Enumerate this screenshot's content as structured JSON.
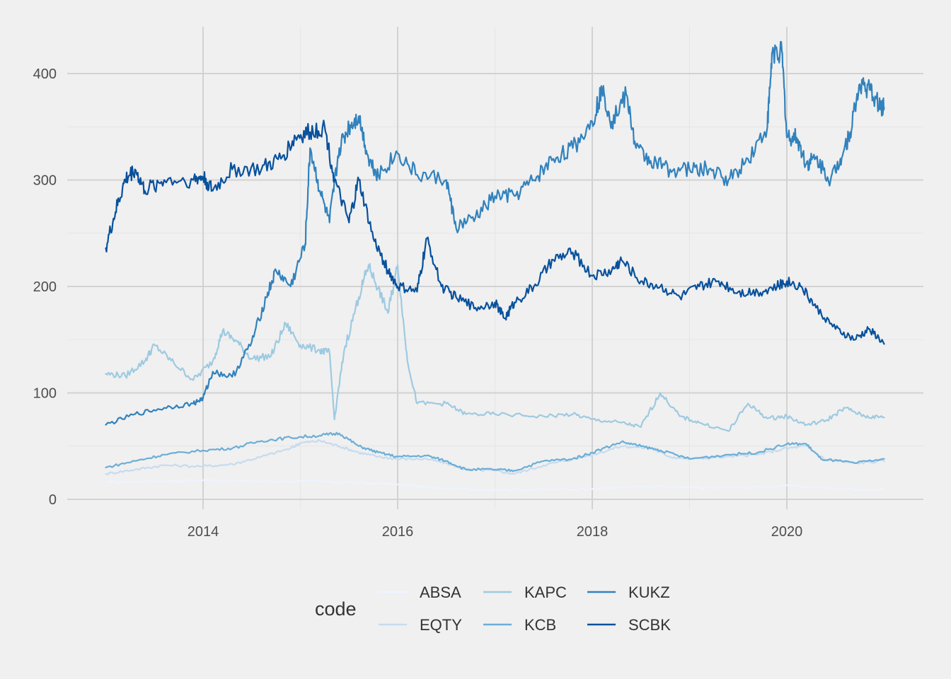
{
  "chart_data": {
    "type": "line",
    "title": "",
    "xlabel": "",
    "ylabel": "",
    "xlim": [
      2013.0,
      2021.0
    ],
    "ylim": [
      0,
      420
    ],
    "x_ticks": [
      2014,
      2016,
      2018,
      2020
    ],
    "y_ticks": [
      0,
      100,
      200,
      300,
      400
    ],
    "grid": true,
    "legend": {
      "title": "code",
      "placement": "bottom"
    },
    "series": [
      {
        "name": "ABSA",
        "color": "#eff3ff",
        "points": [
          [
            2013.0,
            16
          ],
          [
            2013.5,
            17
          ],
          [
            2014.0,
            18
          ],
          [
            2014.5,
            17
          ],
          [
            2015.0,
            17
          ],
          [
            2015.5,
            16
          ],
          [
            2016.0,
            14
          ],
          [
            2016.5,
            10
          ],
          [
            2017.0,
            9
          ],
          [
            2017.5,
            9
          ],
          [
            2018.0,
            10
          ],
          [
            2018.5,
            12
          ],
          [
            2019.0,
            11
          ],
          [
            2019.5,
            11
          ],
          [
            2020.0,
            13
          ],
          [
            2020.5,
            10
          ],
          [
            2021.0,
            9
          ]
        ]
      },
      {
        "name": "EQTY",
        "color": "#c6dbef",
        "points": [
          [
            2013.0,
            24
          ],
          [
            2013.3,
            28
          ],
          [
            2013.6,
            32
          ],
          [
            2014.0,
            31
          ],
          [
            2014.3,
            33
          ],
          [
            2014.6,
            40
          ],
          [
            2014.9,
            48
          ],
          [
            2015.0,
            53
          ],
          [
            2015.2,
            55
          ],
          [
            2015.4,
            50
          ],
          [
            2015.6,
            44
          ],
          [
            2015.8,
            40
          ],
          [
            2016.0,
            38
          ],
          [
            2016.3,
            38
          ],
          [
            2016.5,
            34
          ],
          [
            2016.7,
            28
          ],
          [
            2017.0,
            27
          ],
          [
            2017.2,
            24
          ],
          [
            2017.5,
            32
          ],
          [
            2017.8,
            38
          ],
          [
            2018.0,
            42
          ],
          [
            2018.3,
            50
          ],
          [
            2018.6,
            48
          ],
          [
            2018.8,
            40
          ],
          [
            2019.0,
            38
          ],
          [
            2019.4,
            40
          ],
          [
            2019.7,
            42
          ],
          [
            2020.0,
            48
          ],
          [
            2020.2,
            50
          ],
          [
            2020.4,
            37
          ],
          [
            2020.7,
            34
          ],
          [
            2021.0,
            36
          ]
        ]
      },
      {
        "name": "KAPC",
        "color": "#9ecae1",
        "points": [
          [
            2013.0,
            118
          ],
          [
            2013.2,
            116
          ],
          [
            2013.4,
            130
          ],
          [
            2013.5,
            145
          ],
          [
            2013.7,
            128
          ],
          [
            2013.9,
            112
          ],
          [
            2014.1,
            130
          ],
          [
            2014.2,
            158
          ],
          [
            2014.35,
            148
          ],
          [
            2014.5,
            132
          ],
          [
            2014.7,
            135
          ],
          [
            2014.85,
            165
          ],
          [
            2015.0,
            145
          ],
          [
            2015.2,
            140
          ],
          [
            2015.3,
            138
          ],
          [
            2015.35,
            75
          ],
          [
            2015.45,
            140
          ],
          [
            2015.6,
            190
          ],
          [
            2015.7,
            220
          ],
          [
            2015.8,
            198
          ],
          [
            2015.9,
            175
          ],
          [
            2016.0,
            220
          ],
          [
            2016.1,
            130
          ],
          [
            2016.2,
            90
          ],
          [
            2016.5,
            90
          ],
          [
            2016.7,
            80
          ],
          [
            2017.0,
            80
          ],
          [
            2017.5,
            78
          ],
          [
            2017.8,
            80
          ],
          [
            2018.0,
            75
          ],
          [
            2018.3,
            72
          ],
          [
            2018.5,
            68
          ],
          [
            2018.7,
            100
          ],
          [
            2018.9,
            78
          ],
          [
            2019.1,
            72
          ],
          [
            2019.4,
            64
          ],
          [
            2019.6,
            90
          ],
          [
            2019.8,
            76
          ],
          [
            2020.0,
            78
          ],
          [
            2020.2,
            70
          ],
          [
            2020.4,
            74
          ],
          [
            2020.6,
            86
          ],
          [
            2020.8,
            78
          ],
          [
            2021.0,
            77
          ]
        ]
      },
      {
        "name": "KCB",
        "color": "#6baed6",
        "points": [
          [
            2013.0,
            30
          ],
          [
            2013.3,
            36
          ],
          [
            2013.6,
            42
          ],
          [
            2014.0,
            46
          ],
          [
            2014.3,
            48
          ],
          [
            2014.6,
            55
          ],
          [
            2014.9,
            58
          ],
          [
            2015.2,
            60
          ],
          [
            2015.4,
            62
          ],
          [
            2015.6,
            50
          ],
          [
            2015.8,
            44
          ],
          [
            2016.0,
            40
          ],
          [
            2016.3,
            41
          ],
          [
            2016.5,
            36
          ],
          [
            2016.7,
            28
          ],
          [
            2017.0,
            28
          ],
          [
            2017.2,
            27
          ],
          [
            2017.5,
            36
          ],
          [
            2017.8,
            38
          ],
          [
            2018.0,
            44
          ],
          [
            2018.3,
            54
          ],
          [
            2018.5,
            50
          ],
          [
            2018.7,
            46
          ],
          [
            2019.0,
            38
          ],
          [
            2019.4,
            42
          ],
          [
            2019.7,
            44
          ],
          [
            2020.0,
            52
          ],
          [
            2020.2,
            52
          ],
          [
            2020.35,
            38
          ],
          [
            2020.7,
            34
          ],
          [
            2021.0,
            38
          ]
        ]
      },
      {
        "name": "KUKZ",
        "color": "#3182bd",
        "points": [
          [
            2013.0,
            70
          ],
          [
            2013.3,
            80
          ],
          [
            2013.6,
            86
          ],
          [
            2013.9,
            90
          ],
          [
            2014.0,
            95
          ],
          [
            2014.1,
            120
          ],
          [
            2014.3,
            115
          ],
          [
            2014.5,
            148
          ],
          [
            2014.65,
            190
          ],
          [
            2014.75,
            215
          ],
          [
            2014.9,
            200
          ],
          [
            2015.05,
            240
          ],
          [
            2015.1,
            330
          ],
          [
            2015.2,
            290
          ],
          [
            2015.3,
            260
          ],
          [
            2015.4,
            330
          ],
          [
            2015.5,
            350
          ],
          [
            2015.6,
            360
          ],
          [
            2015.7,
            320
          ],
          [
            2015.8,
            305
          ],
          [
            2016.0,
            325
          ],
          [
            2016.2,
            305
          ],
          [
            2016.5,
            300
          ],
          [
            2016.6,
            255
          ],
          [
            2016.8,
            265
          ],
          [
            2017.0,
            285
          ],
          [
            2017.2,
            285
          ],
          [
            2017.4,
            300
          ],
          [
            2017.6,
            320
          ],
          [
            2017.8,
            330
          ],
          [
            2018.0,
            355
          ],
          [
            2018.1,
            385
          ],
          [
            2018.2,
            355
          ],
          [
            2018.35,
            380
          ],
          [
            2018.45,
            330
          ],
          [
            2018.6,
            318
          ],
          [
            2018.8,
            310
          ],
          [
            2019.0,
            310
          ],
          [
            2019.2,
            310
          ],
          [
            2019.4,
            300
          ],
          [
            2019.6,
            320
          ],
          [
            2019.8,
            350
          ],
          [
            2019.85,
            420
          ],
          [
            2019.95,
            420
          ],
          [
            2020.0,
            340
          ],
          [
            2020.1,
            340
          ],
          [
            2020.2,
            315
          ],
          [
            2020.3,
            320
          ],
          [
            2020.45,
            300
          ],
          [
            2020.55,
            320
          ],
          [
            2020.65,
            345
          ],
          [
            2020.75,
            390
          ],
          [
            2020.85,
            385
          ],
          [
            2020.95,
            370
          ],
          [
            2021.0,
            368
          ]
        ]
      },
      {
        "name": "SCBK",
        "color": "#08519c",
        "points": [
          [
            2013.0,
            236
          ],
          [
            2013.1,
            270
          ],
          [
            2013.2,
            300
          ],
          [
            2013.3,
            310
          ],
          [
            2013.4,
            290
          ],
          [
            2013.6,
            300
          ],
          [
            2013.9,
            300
          ],
          [
            2014.0,
            303
          ],
          [
            2014.1,
            290
          ],
          [
            2014.3,
            310
          ],
          [
            2014.6,
            310
          ],
          [
            2014.8,
            320
          ],
          [
            2014.95,
            340
          ],
          [
            2015.1,
            345
          ],
          [
            2015.25,
            350
          ],
          [
            2015.35,
            300
          ],
          [
            2015.5,
            260
          ],
          [
            2015.6,
            300
          ],
          [
            2015.75,
            245
          ],
          [
            2015.9,
            215
          ],
          [
            2016.0,
            200
          ],
          [
            2016.2,
            195
          ],
          [
            2016.3,
            245
          ],
          [
            2016.45,
            200
          ],
          [
            2016.6,
            190
          ],
          [
            2016.8,
            180
          ],
          [
            2017.0,
            185
          ],
          [
            2017.1,
            170
          ],
          [
            2017.2,
            185
          ],
          [
            2017.4,
            200
          ],
          [
            2017.6,
            225
          ],
          [
            2017.8,
            232
          ],
          [
            2018.0,
            210
          ],
          [
            2018.2,
            215
          ],
          [
            2018.3,
            225
          ],
          [
            2018.5,
            205
          ],
          [
            2018.7,
            200
          ],
          [
            2018.9,
            190
          ],
          [
            2019.1,
            200
          ],
          [
            2019.3,
            205
          ],
          [
            2019.5,
            195
          ],
          [
            2019.7,
            195
          ],
          [
            2019.9,
            200
          ],
          [
            2020.0,
            205
          ],
          [
            2020.15,
            200
          ],
          [
            2020.3,
            180
          ],
          [
            2020.5,
            160
          ],
          [
            2020.7,
            150
          ],
          [
            2020.85,
            160
          ],
          [
            2021.0,
            146
          ]
        ]
      }
    ]
  }
}
